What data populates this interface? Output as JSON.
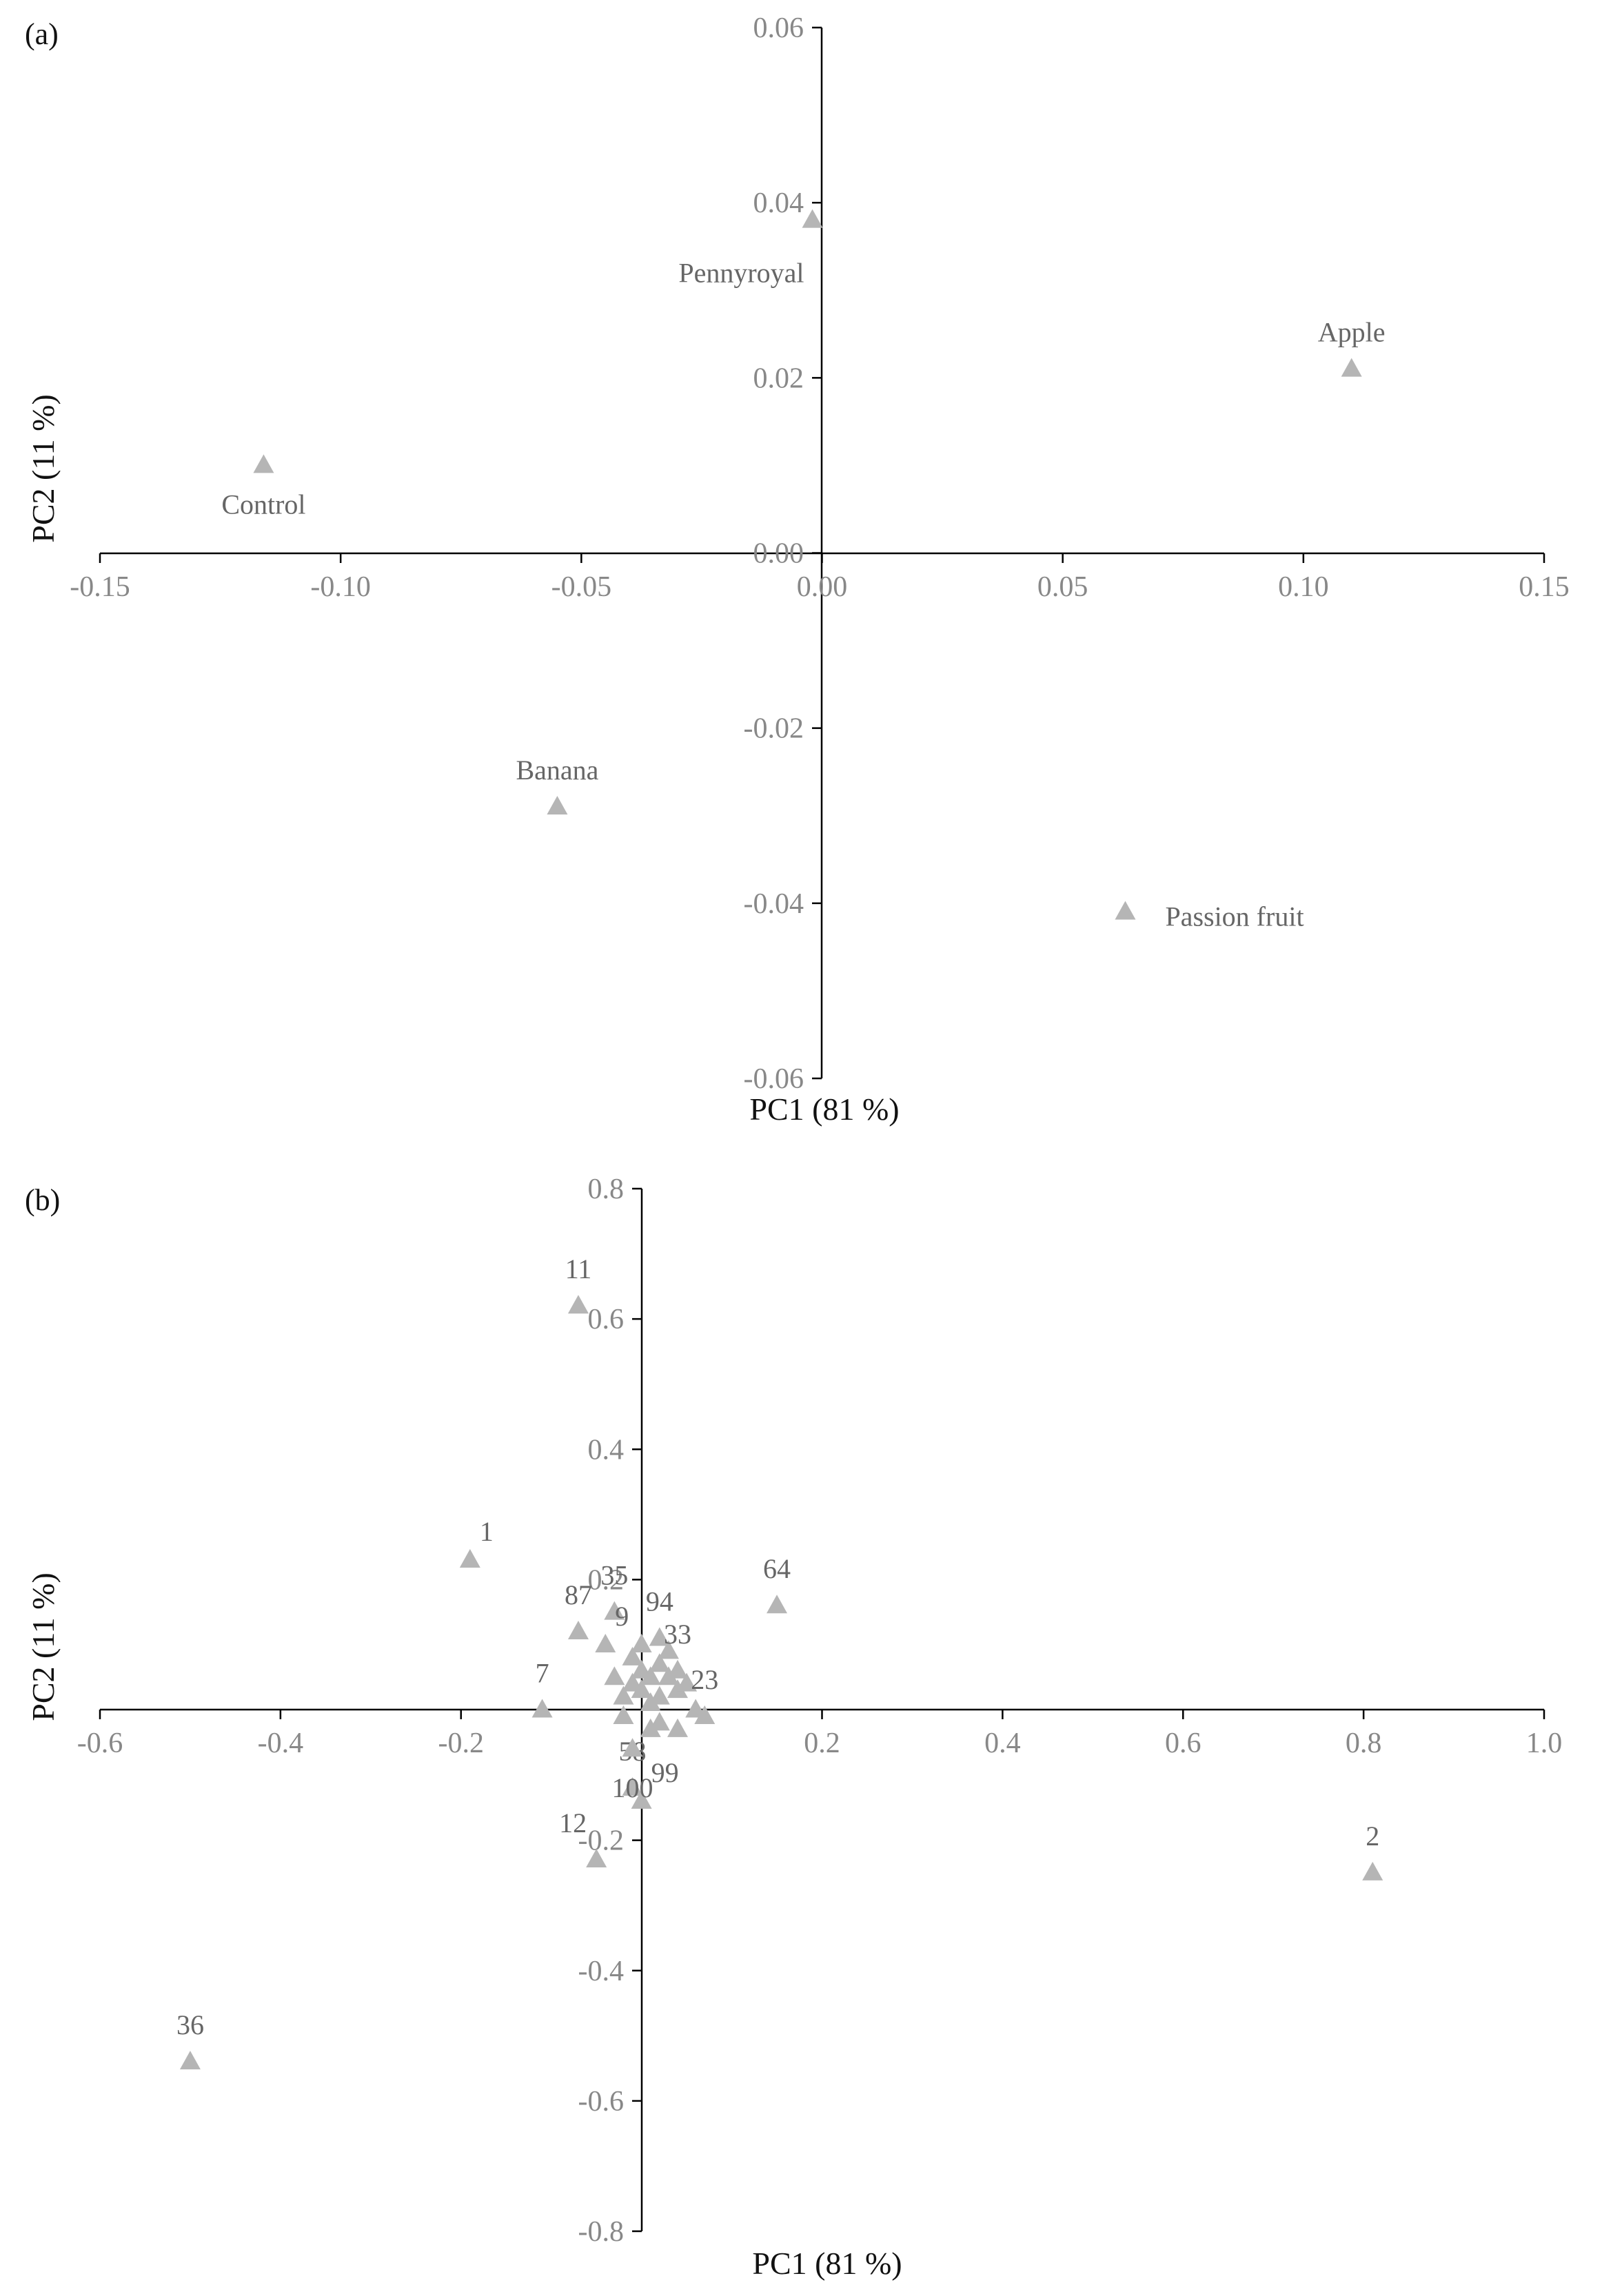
{
  "figure": {
    "colors": {
      "marker": "#b5b5b5",
      "axis": "#000000",
      "tick_text": "#888888",
      "point_text": "#666666"
    }
  },
  "chart_data": [
    {
      "panel_label": "(a)",
      "type": "scatter",
      "xlabel": "PC1 (81 %)",
      "ylabel": "PC2  (11 %)",
      "xlim": [
        -0.15,
        0.15
      ],
      "ylim": [
        -0.06,
        0.06
      ],
      "xticks": [
        -0.15,
        -0.1,
        -0.05,
        0.0,
        0.05,
        0.1,
        0.15
      ],
      "yticks": [
        -0.06,
        -0.04,
        -0.02,
        0.0,
        0.02,
        0.04,
        0.06
      ],
      "tick_decimals": 2,
      "grid": false,
      "marker": "triangle",
      "points": [
        {
          "label": "Pennyroyal",
          "x": -0.002,
          "y": 0.038,
          "label_pos": "below-left"
        },
        {
          "label": "Apple",
          "x": 0.11,
          "y": 0.021,
          "label_pos": "above"
        },
        {
          "label": "Control",
          "x": -0.116,
          "y": 0.01,
          "label_pos": "below"
        },
        {
          "label": "Banana",
          "x": -0.055,
          "y": -0.029,
          "label_pos": "above"
        },
        {
          "label": "Passion fruit",
          "x": 0.063,
          "y": -0.041,
          "label_pos": "right"
        }
      ]
    },
    {
      "panel_label": "(b)",
      "type": "scatter",
      "xlabel": "PC1 (81 %)",
      "ylabel": "PC2  (11 %)",
      "xlim": [
        -0.6,
        1.0
      ],
      "ylim": [
        -0.8,
        0.8
      ],
      "xticks": [
        -0.6,
        -0.4,
        -0.2,
        0.2,
        0.4,
        0.6,
        0.8,
        1.0
      ],
      "yticks": [
        -0.8,
        -0.6,
        -0.4,
        -0.2,
        0.2,
        0.4,
        0.6,
        0.8
      ],
      "tick_decimals": 1,
      "grid": false,
      "marker": "triangle",
      "points": [
        {
          "label": "11",
          "x": -0.07,
          "y": 0.62,
          "label_pos": "above"
        },
        {
          "label": "1",
          "x": -0.19,
          "y": 0.23,
          "label_pos": "above-right"
        },
        {
          "label": "64",
          "x": 0.15,
          "y": 0.16,
          "label_pos": "above"
        },
        {
          "label": "87",
          "x": -0.07,
          "y": 0.12,
          "label_pos": "above"
        },
        {
          "label": "35",
          "x": -0.03,
          "y": 0.15,
          "label_pos": "above"
        },
        {
          "label": "94",
          "x": 0.02,
          "y": 0.11,
          "label_pos": "above"
        },
        {
          "label": "33",
          "x": 0.04,
          "y": 0.06,
          "label_pos": "above"
        },
        {
          "label": "9",
          "x": -0.04,
          "y": 0.1,
          "label_pos": "above-right"
        },
        {
          "label": "7",
          "x": -0.11,
          "y": 0.0,
          "label_pos": "above"
        },
        {
          "label": "23",
          "x": 0.07,
          "y": -0.01,
          "label_pos": "above"
        },
        {
          "label": "2",
          "x": 0.81,
          "y": -0.25,
          "label_pos": "above"
        },
        {
          "label": "12",
          "x": -0.05,
          "y": -0.23,
          "label_pos": "above-left"
        },
        {
          "label": "58",
          "x": -0.01,
          "y": -0.12,
          "label_pos": "above"
        },
        {
          "label": "99",
          "x": 0.0,
          "y": -0.14,
          "label_pos": "above-right"
        },
        {
          "label": "100",
          "x": -0.01,
          "y": -0.06,
          "label_pos": "below"
        },
        {
          "label": "36",
          "x": -0.5,
          "y": -0.54,
          "label_pos": "above"
        }
      ]
    }
  ]
}
